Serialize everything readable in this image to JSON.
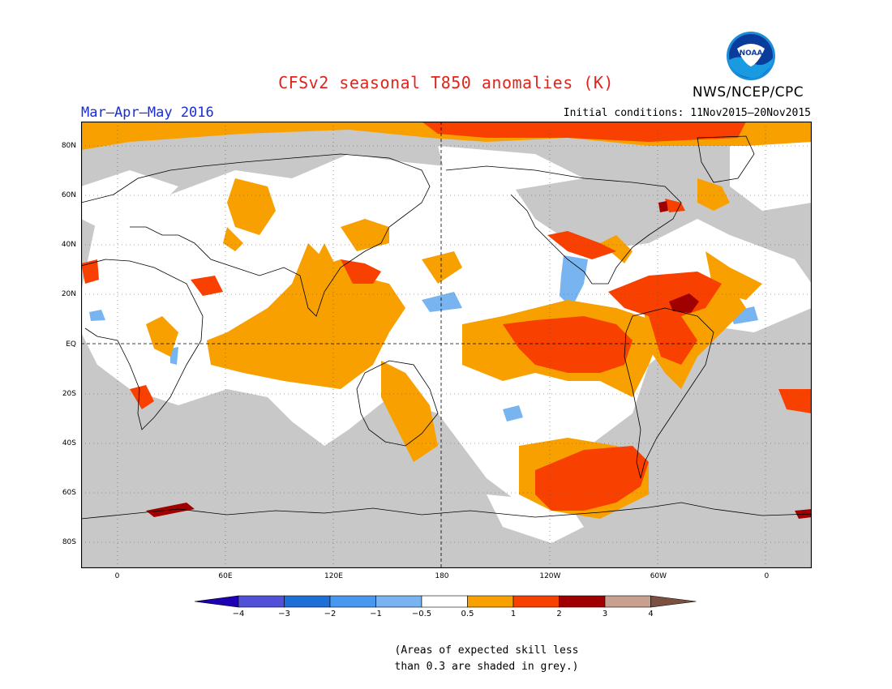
{
  "header": {
    "title": "CFSv2 seasonal T850 anomalies (K)",
    "season": "Mar–Apr–May 2016",
    "initial_conditions": "Initial conditions: 11Nov2015–20Nov2015",
    "agency": "NWS/NCEP/CPC",
    "logo_text": "NOAA"
  },
  "map": {
    "lat_labels": [
      "80N",
      "60N",
      "40N",
      "20N",
      "EQ",
      "20S",
      "40S",
      "60S",
      "80S"
    ],
    "lat_values": [
      80,
      60,
      40,
      20,
      0,
      -20,
      -40,
      -60,
      -80
    ],
    "lon_labels": [
      "0",
      "60E",
      "120E",
      "180",
      "120W",
      "60W",
      "0"
    ],
    "lon_values": [
      0,
      60,
      120,
      180,
      240,
      300,
      360
    ],
    "colors": {
      "grey_skill": "#c8c8c8",
      "white": "#ffffff",
      "light_blue": "#78b4f0",
      "orange": "#f8a000",
      "red_orange": "#f84000",
      "dark_red": "#a00000"
    }
  },
  "colorbar": {
    "labels": [
      "−4",
      "−3",
      "−2",
      "−1",
      "−0.5",
      "0.5",
      "1",
      "2",
      "3",
      "4"
    ],
    "colors": [
      "#1e00b4",
      "#5050d8",
      "#1e6ed8",
      "#4898f0",
      "#78b4f0",
      "#ffffff",
      "#f8a000",
      "#f84000",
      "#a00000",
      "#c8a090",
      "#7c5040"
    ]
  },
  "footnote": {
    "line1": "(Areas of expected skill less",
    "line2": "than 0.3 are shaded in grey.)"
  }
}
